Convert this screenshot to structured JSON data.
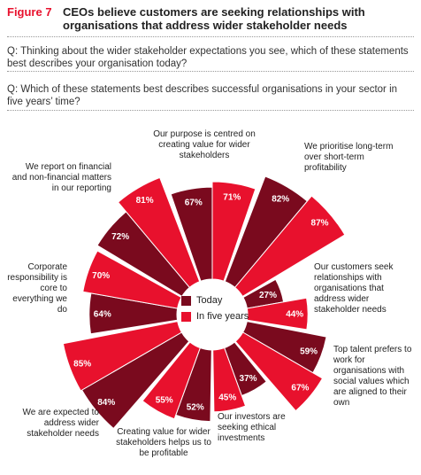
{
  "figure": {
    "label": "Figure 7",
    "title": "CEOs believe customers are seeking relationships with organisations that address wider stakeholder needs"
  },
  "questions": {
    "q1": "Q: Thinking about the wider stakeholder expectations you see, which of these statements best describes your organisation today?",
    "q2": "Q: Which of these statements best describes successful organisations in your sector in five years’ time?"
  },
  "legend": {
    "today": "Today",
    "five_years": "In five years"
  },
  "colors": {
    "today": "#7a0a1e",
    "five_years": "#e8112d",
    "accent": "#e8112d",
    "text": "#222222"
  },
  "chart_data": {
    "type": "polar-bar",
    "series": [
      {
        "name": "Today",
        "color": "#7a0a1e"
      },
      {
        "name": "In five years",
        "color": "#e8112d"
      }
    ],
    "categories": [
      {
        "label": "Our purpose is centred on creating value for wider stakeholders",
        "today": 67,
        "five_years": 71,
        "today_text": "67%",
        "five_years_text": "71%"
      },
      {
        "label": "We prioritise long-term over short-term profitability",
        "today": 82,
        "five_years": 87,
        "today_text": "82%",
        "five_years_text": "87%"
      },
      {
        "label": "Our customers seek relationships with organisations that address wider stakeholder needs",
        "today": 27,
        "five_years": 44,
        "today_text": "27%",
        "five_years_text": "44%"
      },
      {
        "label": "Top talent prefers to work for organisations with social values which are aligned to their own",
        "today": 59,
        "five_years": 67,
        "today_text": "59%",
        "five_years_text": "67%"
      },
      {
        "label": "Our investors are seeking ethical investments",
        "today": 37,
        "five_years": 45,
        "today_text": "37%",
        "five_years_text": "45%"
      },
      {
        "label": "Creating value for wider stakeholders helps us to be profitable",
        "today": 52,
        "five_years": 55,
        "today_text": "52%",
        "five_years_text": "55%"
      },
      {
        "label": "We are expected to address wider stakeholder needs",
        "today": 84,
        "five_years": 85,
        "today_text": "84%",
        "five_years_text": "85%"
      },
      {
        "label": "Corporate responsibility is core to everything we do",
        "today": 64,
        "five_years": 70,
        "today_text": "64%",
        "five_years_text": "70%"
      },
      {
        "label": "We report on financial and non-financial matters in our reporting",
        "today": 72,
        "five_years": 81,
        "today_text": "72%",
        "five_years_text": "81%"
      }
    ]
  }
}
